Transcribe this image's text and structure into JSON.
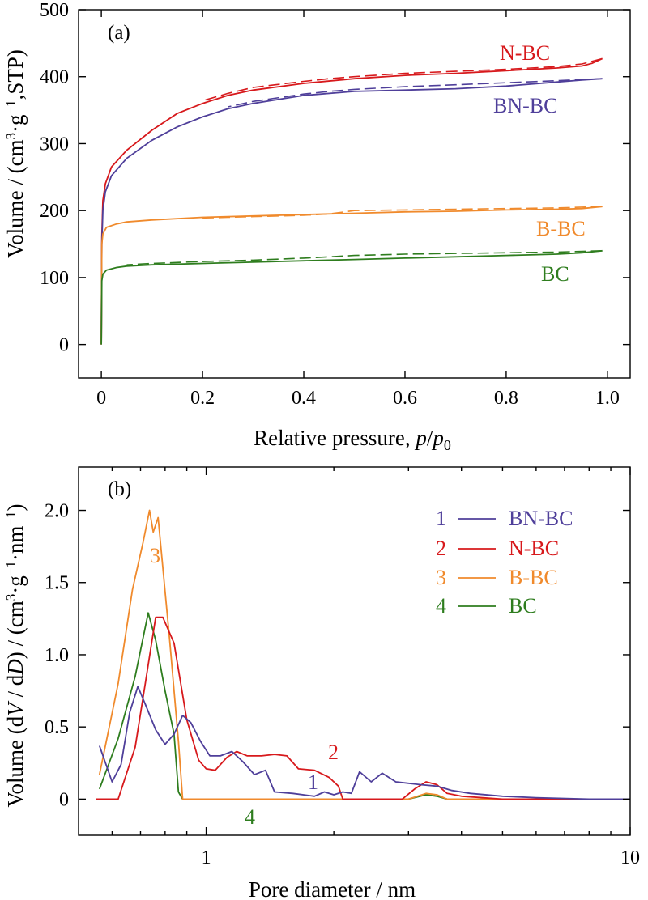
{
  "colors": {
    "BN-BC": "#4f3f9a",
    "N-BC": "#d7191c",
    "B-BC": "#f08a2c",
    "BC": "#2e7d1e"
  },
  "chart_data": [
    {
      "type": "line",
      "panel_label": "(a)",
      "xlabel": "Relative pressure, p/p0",
      "xlabel_parts": {
        "main": "Relative pressure, ",
        "p1": "p",
        "slash": "/",
        "p2": "p",
        "sub": "0"
      },
      "ylabel": "Volume / (cm3·g−1,STP)",
      "ylabel_parts": {
        "pre": "Volume / (cm",
        "sup1": "3",
        "mid": "·g",
        "sup2": "−1",
        "post": ",STP)"
      },
      "xlim": [
        -0.045,
        1.045
      ],
      "ylim": [
        -50,
        500
      ],
      "x_ticks": [
        0,
        0.2,
        0.4,
        0.6,
        0.8,
        1.0
      ],
      "x_tick_labels": [
        "0",
        "0.2",
        "0.4",
        "0.6",
        "0.8",
        "1.0"
      ],
      "y_ticks": [
        0,
        100,
        200,
        300,
        400,
        500
      ],
      "y_tick_labels": [
        "0",
        "100",
        "200",
        "300",
        "400",
        "500"
      ],
      "series": [
        {
          "name": "N-BC",
          "label_text": "N-BC",
          "adsorption": [
            [
              0.0,
              0
            ],
            [
              0.001,
              160
            ],
            [
              0.003,
              215
            ],
            [
              0.008,
              240
            ],
            [
              0.02,
              265
            ],
            [
              0.05,
              290
            ],
            [
              0.1,
              320
            ],
            [
              0.15,
              345
            ],
            [
              0.2,
              360
            ],
            [
              0.25,
              372
            ],
            [
              0.3,
              380
            ],
            [
              0.4,
              390
            ],
            [
              0.5,
              397
            ],
            [
              0.6,
              402
            ],
            [
              0.7,
              405
            ],
            [
              0.8,
              409
            ],
            [
              0.9,
              413
            ],
            [
              0.95,
              416
            ],
            [
              0.97,
              420
            ],
            [
              0.99,
              427
            ]
          ],
          "desorption": [
            [
              0.99,
              427
            ],
            [
              0.95,
              419
            ],
            [
              0.9,
              415
            ],
            [
              0.8,
              411
            ],
            [
              0.7,
              408
            ],
            [
              0.6,
              405
            ],
            [
              0.5,
              400
            ],
            [
              0.45,
              397
            ],
            [
              0.4,
              393
            ],
            [
              0.3,
              384
            ],
            [
              0.25,
              375
            ],
            [
              0.2,
              364
            ]
          ]
        },
        {
          "name": "BN-BC",
          "label_text": "BN-BC",
          "adsorption": [
            [
              0.0,
              0
            ],
            [
              0.001,
              150
            ],
            [
              0.003,
              200
            ],
            [
              0.008,
              228
            ],
            [
              0.02,
              252
            ],
            [
              0.05,
              278
            ],
            [
              0.1,
              305
            ],
            [
              0.15,
              325
            ],
            [
              0.2,
              340
            ],
            [
              0.25,
              352
            ],
            [
              0.3,
              360
            ],
            [
              0.4,
              372
            ],
            [
              0.5,
              378
            ],
            [
              0.6,
              380
            ],
            [
              0.7,
              382
            ],
            [
              0.8,
              386
            ],
            [
              0.9,
              392
            ],
            [
              0.95,
              395
            ],
            [
              0.99,
              397
            ]
          ],
          "desorption": [
            [
              0.99,
              397
            ],
            [
              0.9,
              394
            ],
            [
              0.8,
              391
            ],
            [
              0.7,
              388
            ],
            [
              0.6,
              385
            ],
            [
              0.5,
              381
            ],
            [
              0.45,
              378
            ],
            [
              0.4,
              374
            ],
            [
              0.3,
              363
            ],
            [
              0.25,
              355
            ]
          ]
        },
        {
          "name": "B-BC",
          "label_text": "B-BC",
          "adsorption": [
            [
              0.0,
              0
            ],
            [
              0.001,
              150
            ],
            [
              0.003,
              165
            ],
            [
              0.01,
              175
            ],
            [
              0.03,
              180
            ],
            [
              0.05,
              183
            ],
            [
              0.1,
              186
            ],
            [
              0.2,
              190
            ],
            [
              0.3,
              192
            ],
            [
              0.4,
              194
            ],
            [
              0.5,
              196
            ],
            [
              0.6,
              198
            ],
            [
              0.7,
              199
            ],
            [
              0.8,
              201
            ],
            [
              0.9,
              202
            ],
            [
              0.95,
              203
            ],
            [
              0.99,
              206
            ]
          ],
          "desorption": [
            [
              0.99,
              206
            ],
            [
              0.9,
              204
            ],
            [
              0.8,
              203
            ],
            [
              0.7,
              202
            ],
            [
              0.6,
              201
            ],
            [
              0.5,
              200
            ],
            [
              0.45,
              195
            ],
            [
              0.4,
              193
            ],
            [
              0.3,
              191
            ],
            [
              0.25,
              190
            ],
            [
              0.2,
              189
            ]
          ]
        },
        {
          "name": "BC",
          "label_text": "BC",
          "adsorption": [
            [
              0.0,
              0
            ],
            [
              0.001,
              95
            ],
            [
              0.003,
              105
            ],
            [
              0.01,
              111
            ],
            [
              0.03,
              115
            ],
            [
              0.05,
              117
            ],
            [
              0.1,
              119
            ],
            [
              0.2,
              121
            ],
            [
              0.3,
              123
            ],
            [
              0.4,
              125
            ],
            [
              0.5,
              127
            ],
            [
              0.6,
              129
            ],
            [
              0.7,
              131
            ],
            [
              0.8,
              133
            ],
            [
              0.9,
              135
            ],
            [
              0.95,
              137
            ],
            [
              0.99,
              140
            ]
          ],
          "desorption": [
            [
              0.99,
              140
            ],
            [
              0.9,
              138
            ],
            [
              0.8,
              137
            ],
            [
              0.7,
              136
            ],
            [
              0.6,
              135
            ],
            [
              0.5,
              133
            ],
            [
              0.45,
              131
            ],
            [
              0.4,
              129
            ],
            [
              0.3,
              126
            ],
            [
              0.2,
              124
            ],
            [
              0.1,
              121
            ],
            [
              0.05,
              119
            ]
          ]
        }
      ]
    },
    {
      "type": "line",
      "x_scale": "log",
      "panel_label": "(b)",
      "xlabel": "Pore diameter / nm",
      "ylabel": "Volume (dV / dD) / (cm3·g−1·nm−1)",
      "ylabel_parts": {
        "pre": "Volume (d",
        "V": "V",
        "mid1": " / d",
        "D": "D",
        "mid2": ") / (cm",
        "sup1": "3",
        "mid3": "·g",
        "sup2": "−1",
        "mid4": "·nm",
        "sup3": "−1",
        "post": ")"
      },
      "xlim": [
        0.5,
        10
      ],
      "ylim": [
        -0.25,
        2.3
      ],
      "x_ticks": [
        1,
        10
      ],
      "x_tick_labels": [
        "1",
        "10"
      ],
      "x_minor_ticks": [
        0.6,
        0.7,
        0.8,
        0.9,
        2,
        3,
        4,
        5,
        6,
        7,
        8,
        9
      ],
      "y_ticks": [
        0,
        0.5,
        1.0,
        1.5,
        2.0
      ],
      "y_tick_labels": [
        "0",
        "0.5",
        "1.0",
        "1.5",
        "2.0"
      ],
      "legend": [
        {
          "number": "1",
          "name": "BN-BC"
        },
        {
          "number": "2",
          "name": "N-BC"
        },
        {
          "number": "3",
          "name": "B-BC"
        },
        {
          "number": "4",
          "name": "BC"
        }
      ],
      "annotations": {
        "curve1": "1",
        "curve2": "2",
        "curve3": "3",
        "curve4": "4"
      },
      "series": [
        {
          "name": "BN-BC",
          "points": [
            [
              0.56,
              0.37
            ],
            [
              0.6,
              0.12
            ],
            [
              0.63,
              0.24
            ],
            [
              0.66,
              0.6
            ],
            [
              0.69,
              0.78
            ],
            [
              0.72,
              0.65
            ],
            [
              0.76,
              0.48
            ],
            [
              0.8,
              0.38
            ],
            [
              0.84,
              0.45
            ],
            [
              0.88,
              0.58
            ],
            [
              0.92,
              0.53
            ],
            [
              0.97,
              0.4
            ],
            [
              1.02,
              0.3
            ],
            [
              1.08,
              0.3
            ],
            [
              1.15,
              0.33
            ],
            [
              1.22,
              0.26
            ],
            [
              1.3,
              0.17
            ],
            [
              1.38,
              0.2
            ],
            [
              1.45,
              0.05
            ],
            [
              1.6,
              0.04
            ],
            [
              1.8,
              0.02
            ],
            [
              1.9,
              0.05
            ],
            [
              2.0,
              0.03
            ],
            [
              2.1,
              0.05
            ],
            [
              2.2,
              0.04
            ],
            [
              2.3,
              0.19
            ],
            [
              2.45,
              0.12
            ],
            [
              2.6,
              0.18
            ],
            [
              2.8,
              0.12
            ],
            [
              3.0,
              0.11
            ],
            [
              3.2,
              0.1
            ],
            [
              3.5,
              0.09
            ],
            [
              3.8,
              0.06
            ],
            [
              4.2,
              0.04
            ],
            [
              5.0,
              0.02
            ],
            [
              6.0,
              0.01
            ],
            [
              8.0,
              0.0
            ],
            [
              10.0,
              0.0
            ]
          ]
        },
        {
          "name": "N-BC",
          "points": [
            [
              0.55,
              0.0
            ],
            [
              0.62,
              0.0
            ],
            [
              0.68,
              0.36
            ],
            [
              0.72,
              0.82
            ],
            [
              0.76,
              1.26
            ],
            [
              0.79,
              1.26
            ],
            [
              0.84,
              1.08
            ],
            [
              0.9,
              0.55
            ],
            [
              0.96,
              0.27
            ],
            [
              1.0,
              0.21
            ],
            [
              1.05,
              0.2
            ],
            [
              1.12,
              0.29
            ],
            [
              1.18,
              0.33
            ],
            [
              1.25,
              0.3
            ],
            [
              1.35,
              0.3
            ],
            [
              1.45,
              0.31
            ],
            [
              1.55,
              0.3
            ],
            [
              1.65,
              0.21
            ],
            [
              1.8,
              0.2
            ],
            [
              1.95,
              0.15
            ],
            [
              2.05,
              0.09
            ],
            [
              2.1,
              0.0
            ],
            [
              2.5,
              0.0
            ],
            [
              2.9,
              0.0
            ],
            [
              3.1,
              0.07
            ],
            [
              3.3,
              0.12
            ],
            [
              3.5,
              0.1
            ],
            [
              3.7,
              0.04
            ],
            [
              4.0,
              0.02
            ],
            [
              5.0,
              0.0
            ],
            [
              10.0,
              0.0
            ]
          ]
        },
        {
          "name": "B-BC",
          "points": [
            [
              0.56,
              0.17
            ],
            [
              0.62,
              0.8
            ],
            [
              0.67,
              1.45
            ],
            [
              0.71,
              1.78
            ],
            [
              0.735,
              2.0
            ],
            [
              0.75,
              1.85
            ],
            [
              0.77,
              1.95
            ],
            [
              0.82,
              1.1
            ],
            [
              0.86,
              0.4
            ],
            [
              0.88,
              0.0
            ],
            [
              1.5,
              0.0
            ],
            [
              3.0,
              0.0
            ],
            [
              3.3,
              0.04
            ],
            [
              3.5,
              0.03
            ],
            [
              3.7,
              0.0
            ],
            [
              10.0,
              0.0
            ]
          ]
        },
        {
          "name": "BC",
          "points": [
            [
              0.56,
              0.07
            ],
            [
              0.62,
              0.42
            ],
            [
              0.68,
              0.85
            ],
            [
              0.73,
              1.29
            ],
            [
              0.76,
              1.1
            ],
            [
              0.8,
              0.75
            ],
            [
              0.84,
              0.45
            ],
            [
              0.86,
              0.05
            ],
            [
              0.88,
              0.0
            ],
            [
              1.5,
              0.0
            ],
            [
              3.0,
              0.0
            ],
            [
              3.3,
              0.03
            ],
            [
              3.5,
              0.02
            ],
            [
              3.7,
              0.0
            ],
            [
              10.0,
              0.0
            ]
          ]
        }
      ]
    }
  ]
}
